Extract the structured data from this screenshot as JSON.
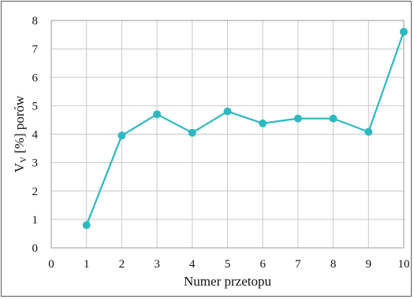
{
  "chart_data": {
    "type": "line",
    "xlabel": "Numer przetopu",
    "ylabel_main": "V",
    "ylabel_sub": "V",
    "ylabel_rest": " [%] porów",
    "x_ticks": [
      "0",
      "1",
      "2",
      "3",
      "4",
      "5",
      "6",
      "7",
      "8",
      "9",
      "10"
    ],
    "y_ticks": [
      "0",
      "1",
      "2",
      "3",
      "4",
      "5",
      "6",
      "7",
      "8"
    ],
    "xlim": [
      0,
      10
    ],
    "ylim": [
      0,
      8
    ],
    "grid": true,
    "series": [
      {
        "color": "#2fb8c0",
        "x": [
          1,
          2,
          3,
          4,
          5,
          6,
          7,
          8,
          9,
          10
        ],
        "y": [
          0.8,
          3.95,
          4.7,
          4.05,
          4.8,
          4.38,
          4.55,
          4.55,
          4.08,
          7.6
        ]
      }
    ]
  }
}
